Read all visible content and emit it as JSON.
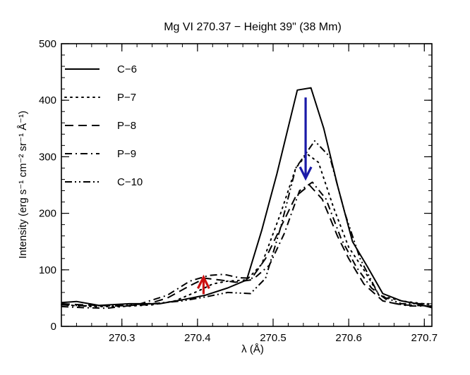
{
  "chart_data": {
    "type": "line",
    "title": "Mg VI 270.37 − Height 39\" (38 Mm)",
    "xlabel": "λ (Å)",
    "ylabel": "Intensity (erg s⁻¹ cm⁻² sr⁻¹ Å⁻¹)",
    "xlim": [
      270.22,
      270.71
    ],
    "ylim": [
      0,
      500
    ],
    "xticks": [
      270.3,
      270.4,
      270.5,
      270.6,
      270.7
    ],
    "xtick_labels": [
      "270.3",
      "270.4",
      "270.5",
      "270.6",
      "270.7"
    ],
    "yticks": [
      0,
      100,
      200,
      300,
      400,
      500
    ],
    "ytick_labels": [
      "0",
      "100",
      "200",
      "300",
      "400",
      "500"
    ],
    "legend_position": "top-left",
    "series": [
      {
        "name": "C−6",
        "style": "solid",
        "x": [
          270.22,
          270.24,
          270.27,
          270.31,
          270.35,
          270.38,
          270.41,
          270.44,
          270.465,
          270.485,
          270.505,
          270.532,
          270.55,
          270.567,
          270.585,
          270.605,
          270.625,
          270.645,
          270.67,
          270.69,
          270.71
        ],
        "y": [
          42,
          44,
          37,
          40,
          40,
          47,
          55,
          68,
          82,
          170,
          270,
          418,
          422,
          350,
          250,
          150,
          105,
          58,
          45,
          40,
          33
        ]
      },
      {
        "name": "P−7",
        "style": "dotted",
        "x": [
          270.22,
          270.26,
          270.3,
          270.34,
          270.37,
          270.4,
          270.42,
          270.44,
          270.465,
          270.485,
          270.51,
          270.53,
          270.545,
          270.56,
          270.58,
          270.6,
          270.62,
          270.64,
          270.67,
          270.71
        ],
        "y": [
          38,
          35,
          35,
          38,
          45,
          62,
          75,
          80,
          82,
          110,
          200,
          280,
          305,
          290,
          210,
          140,
          100,
          55,
          45,
          38
        ]
      },
      {
        "name": "P−8",
        "style": "dashed",
        "x": [
          270.22,
          270.25,
          270.29,
          270.33,
          270.36,
          270.39,
          270.41,
          270.43,
          270.45,
          270.47,
          270.49,
          270.51,
          270.53,
          270.548,
          270.565,
          270.585,
          270.6,
          270.62,
          270.645,
          270.67,
          270.71
        ],
        "y": [
          40,
          38,
          36,
          38,
          50,
          72,
          85,
          82,
          78,
          82,
          120,
          175,
          230,
          250,
          225,
          160,
          120,
          75,
          45,
          38,
          36
        ]
      },
      {
        "name": "P−9",
        "style": "dashdot",
        "x": [
          270.22,
          270.25,
          270.28,
          270.32,
          270.36,
          270.39,
          270.415,
          270.435,
          270.455,
          270.475,
          270.495,
          270.515,
          270.535,
          270.552,
          270.57,
          270.59,
          270.61,
          270.63,
          270.655,
          270.68,
          270.71
        ],
        "y": [
          35,
          33,
          32,
          38,
          55,
          80,
          90,
          92,
          86,
          85,
          108,
          165,
          240,
          255,
          225,
          155,
          105,
          68,
          42,
          36,
          36
        ]
      },
      {
        "name": "C−10",
        "style": "dashdotdot",
        "x": [
          270.22,
          270.26,
          270.3,
          270.34,
          270.38,
          270.41,
          270.44,
          270.47,
          270.49,
          270.51,
          270.53,
          270.555,
          270.575,
          270.595,
          270.615,
          270.64,
          270.67,
          270.71
        ],
        "y": [
          38,
          36,
          38,
          40,
          45,
          52,
          60,
          58,
          85,
          175,
          280,
          328,
          300,
          200,
          120,
          55,
          40,
          40
        ]
      }
    ],
    "annotations": [
      {
        "type": "arrow",
        "color": "#1a1aa8",
        "x": 270.543,
        "y_from": 405,
        "y_to": 262,
        "direction": "down"
      },
      {
        "type": "arrow",
        "color": "#cc1111",
        "x": 270.408,
        "y_from": 57,
        "y_to": 87,
        "direction": "up"
      }
    ]
  }
}
